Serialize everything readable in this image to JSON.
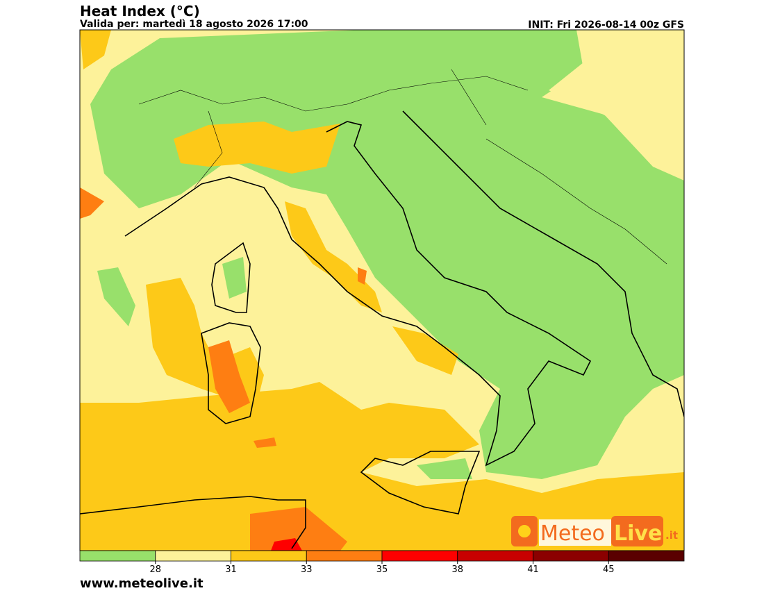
{
  "header": {
    "title": "Heat Index (°C)",
    "valid": "Valida per: martedì 18 agosto 2026 17:00",
    "init": "INIT: Fri 2026-08-14 00z GFS"
  },
  "colorbar": {
    "colors": [
      "#98e06b",
      "#fdf29a",
      "#fdc918",
      "#fe7e12",
      "#fe0000",
      "#c80000",
      "#8b0000",
      "#5a0000"
    ],
    "ticks": [
      28,
      31,
      33,
      35,
      38,
      41,
      45
    ]
  },
  "logo": {
    "part1": "Meteo",
    "part2": "Live",
    "suffix": ".it"
  },
  "footer": {
    "website": "www.meteolive.it"
  }
}
